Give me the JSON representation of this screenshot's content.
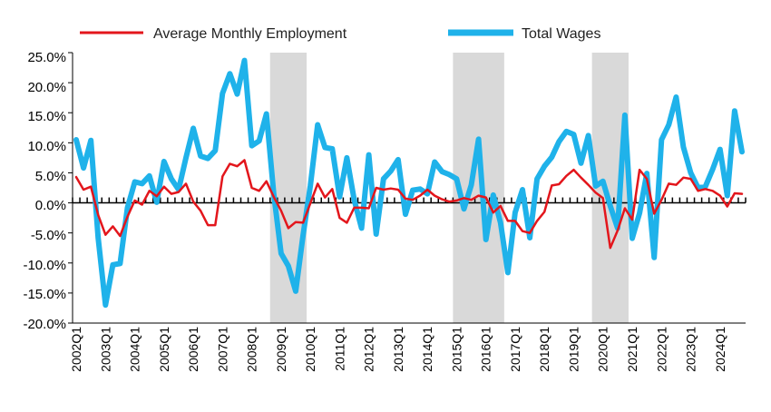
{
  "chart_data": {
    "type": "line",
    "title": "",
    "xlabel": "",
    "ylabel": "",
    "ylim": [
      -20,
      25
    ],
    "y_ticks": [
      "25.0%",
      "20.0%",
      "15.0%",
      "10.0%",
      "5.0%",
      "0.0%",
      "-5.0%",
      "-10.0%",
      "-15.0%",
      "-20.0%"
    ],
    "y_tick_values": [
      25,
      20,
      15,
      10,
      5,
      0,
      -5,
      -10,
      -15,
      -20
    ],
    "x_tick_labels": [
      "2002Q1",
      "2003Q1",
      "2004Q1",
      "2005Q1",
      "2006Q1",
      "2007Q1",
      "2008Q1",
      "2009Q1",
      "2010Q1",
      "2011Q1",
      "2012Q1",
      "2013Q1",
      "2014Q1",
      "2015Q1",
      "2016Q1",
      "2017Q1",
      "2018Q1",
      "2019Q1",
      "2020Q1",
      "2021Q1",
      "2022Q1",
      "2023Q1",
      "2024Q1"
    ],
    "quarters_count": 92,
    "first_quarter": "2002Q1",
    "last_quarter": "2024Q4",
    "legend_position": "top",
    "grid": false,
    "recession_shading": [
      {
        "start": "2008Q4",
        "end": "2009Q4"
      },
      {
        "start": "2015Q1",
        "end": "2016Q3"
      },
      {
        "start": "2019Q4",
        "end": "2020Q4"
      }
    ],
    "shading_color": "#d9d9d9",
    "series": [
      {
        "name": "Average Monthly Employment",
        "color": "#e3161c",
        "values": [
          4.3,
          2.2,
          2.7,
          -2.0,
          -5.3,
          -3.9,
          -5.5,
          -2.3,
          0.4,
          -0.3,
          2.0,
          1.1,
          2.7,
          1.5,
          1.8,
          3.2,
          0.2,
          -1.3,
          -3.7,
          -3.7,
          4.4,
          6.5,
          6.1,
          7.1,
          2.5,
          2.0,
          3.6,
          1.0,
          -1.3,
          -4.2,
          -3.2,
          -3.3,
          -0.1,
          3.2,
          0.9,
          2.3,
          -2.5,
          -3.3,
          -0.8,
          -0.8,
          -0.9,
          2.5,
          2.2,
          2.4,
          2.2,
          0.7,
          0.5,
          1.2,
          2.2,
          1.2,
          0.6,
          0.2,
          0.4,
          0.8,
          0.5,
          1.2,
          0.9,
          -1.6,
          -0.5,
          -3.0,
          -3.0,
          -4.7,
          -5.0,
          -3.0,
          -1.5,
          2.9,
          3.1,
          4.5,
          5.5,
          4.2,
          3.0,
          1.7,
          0.8,
          -7.5,
          -4.6,
          -0.9,
          -2.8,
          5.5,
          4.0,
          -1.8,
          0.5,
          3.2,
          3.0,
          4.2,
          4.0,
          2.0,
          2.3,
          2.0,
          1.2,
          -0.6,
          1.6,
          1.5
        ]
      },
      {
        "name": "Total Wages",
        "color": "#1fb2ea",
        "values": [
          10.5,
          5.8,
          10.4,
          -5.8,
          -17.0,
          -10.3,
          -10.1,
          -0.8,
          3.5,
          3.2,
          4.5,
          0.1,
          6.9,
          4.0,
          2.2,
          7.5,
          12.4,
          7.8,
          7.4,
          8.7,
          18.2,
          21.5,
          18.1,
          23.7,
          9.5,
          10.3,
          14.8,
          1.5,
          -8.4,
          -10.5,
          -14.7,
          -5.4,
          2.8,
          13.0,
          9.2,
          9.0,
          1.0,
          7.5,
          0.5,
          -4.2,
          8.0,
          -5.2,
          4.0,
          5.3,
          7.2,
          -1.9,
          2.1,
          2.3,
          1.5,
          6.8,
          5.2,
          4.7,
          4.0,
          -1.0,
          3.0,
          10.6,
          -6.1,
          1.3,
          -3.3,
          -11.6,
          -1.6,
          2.2,
          -5.8,
          4.0,
          6.1,
          7.6,
          10.2,
          11.9,
          11.4,
          6.6,
          11.2,
          2.8,
          3.6,
          -0.5,
          -4.2,
          14.6,
          -5.9,
          -1.7,
          4.9,
          -9.1,
          10.5,
          13.0,
          17.6,
          9.3,
          5.0,
          2.5,
          2.7,
          5.6,
          8.9,
          1.2,
          15.3,
          8.5
        ]
      }
    ]
  }
}
